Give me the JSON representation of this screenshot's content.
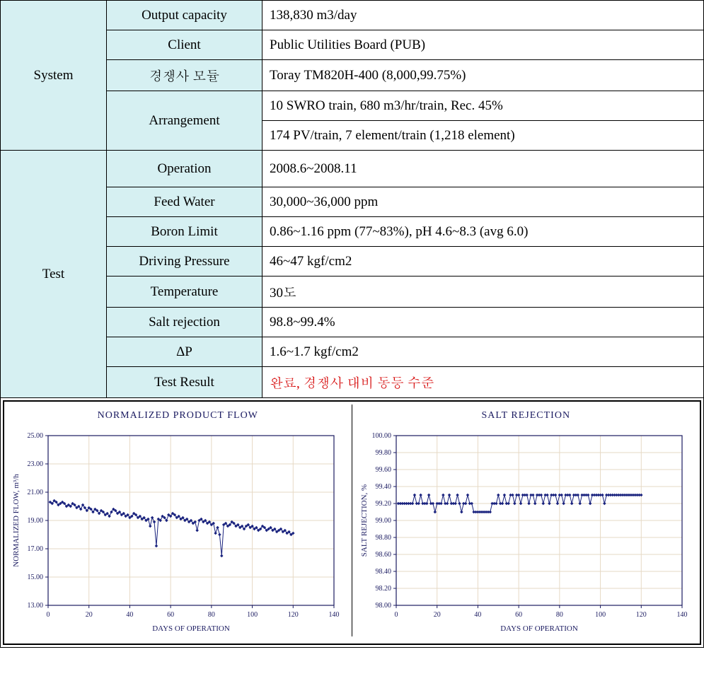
{
  "table": {
    "system": {
      "category": "System",
      "rows": [
        {
          "label": "Output capacity",
          "value": "138,830 m3/day"
        },
        {
          "label": "Client",
          "value": "Public Utilities Board (PUB)"
        },
        {
          "label": "경쟁사 모듈",
          "value": "Toray TM820H-400 (8,000,99.75%)"
        },
        {
          "label": "Arrangement",
          "value": "10 SWRO train, 680 m3/hr/train, Rec. 45%",
          "rowspan": 2
        },
        {
          "label": "",
          "value": "174 PV/train, 7 element/train (1,218 element)"
        }
      ]
    },
    "test": {
      "category": "Test",
      "rows": [
        {
          "label": "Operation",
          "value": "2008.6~2008.11"
        },
        {
          "label": "Feed Water",
          "value": "30,000~36,000 ppm"
        },
        {
          "label": "Boron Limit",
          "value": "0.86~1.16 ppm (77~83%), pH 4.6~8.3 (avg 6.0)"
        },
        {
          "label": "Driving Pressure",
          "value": "46~47 kgf/cm2"
        },
        {
          "label": "Temperature",
          "value": "30도"
        },
        {
          "label": "Salt rejection",
          "value": "98.8~99.4%"
        },
        {
          "label": "ΔP",
          "value": "1.6~1.7 kgf/cm2"
        },
        {
          "label": "Test Result",
          "value": "완료, 경쟁사 대비 동등 수준",
          "value_class": "red"
        }
      ]
    }
  },
  "charts": {
    "left": {
      "title": "NORMALIZED PRODUCT FLOW",
      "xlabel": "DAYS OF OPERATION",
      "ylabel": "NORMALIZED FLOW, m³/h",
      "xlim": [
        0,
        140
      ],
      "ylim": [
        13,
        25
      ],
      "xticks": [
        0,
        20,
        40,
        60,
        80,
        100,
        120,
        140
      ],
      "yticks": [
        13,
        15,
        17,
        19,
        21,
        23,
        25
      ],
      "ytick_labels": [
        "13.00",
        "15.00",
        "17.00",
        "19.00",
        "21.00",
        "23.00",
        "25.00"
      ],
      "series_color": "#1a237e",
      "grid_color": "#e6d9c5",
      "axis_color": "#1a1a60",
      "data": [
        [
          1,
          20.3
        ],
        [
          2,
          20.2
        ],
        [
          3,
          20.4
        ],
        [
          4,
          20.3
        ],
        [
          5,
          20.1
        ],
        [
          6,
          20.2
        ],
        [
          7,
          20.3
        ],
        [
          8,
          20.2
        ],
        [
          9,
          20.0
        ],
        [
          10,
          20.1
        ],
        [
          11,
          20.0
        ],
        [
          12,
          20.2
        ],
        [
          13,
          20.1
        ],
        [
          14,
          19.9
        ],
        [
          15,
          20.0
        ],
        [
          16,
          19.8
        ],
        [
          17,
          20.1
        ],
        [
          18,
          19.9
        ],
        [
          19,
          19.7
        ],
        [
          20,
          19.9
        ],
        [
          21,
          19.8
        ],
        [
          22,
          19.6
        ],
        [
          23,
          19.8
        ],
        [
          24,
          19.7
        ],
        [
          25,
          19.5
        ],
        [
          26,
          19.7
        ],
        [
          27,
          19.6
        ],
        [
          28,
          19.4
        ],
        [
          29,
          19.5
        ],
        [
          30,
          19.3
        ],
        [
          31,
          19.6
        ],
        [
          32,
          19.8
        ],
        [
          33,
          19.7
        ],
        [
          34,
          19.5
        ],
        [
          35,
          19.6
        ],
        [
          36,
          19.4
        ],
        [
          37,
          19.5
        ],
        [
          38,
          19.3
        ],
        [
          39,
          19.4
        ],
        [
          40,
          19.2
        ],
        [
          41,
          19.3
        ],
        [
          42,
          19.5
        ],
        [
          43,
          19.4
        ],
        [
          44,
          19.2
        ],
        [
          45,
          19.3
        ],
        [
          46,
          19.1
        ],
        [
          47,
          19.2
        ],
        [
          48,
          19.0
        ],
        [
          49,
          19.1
        ],
        [
          50,
          18.6
        ],
        [
          51,
          19.2
        ],
        [
          52,
          18.9
        ],
        [
          53,
          17.2
        ],
        [
          54,
          19.1
        ],
        [
          55,
          19.0
        ],
        [
          56,
          19.3
        ],
        [
          57,
          19.2
        ],
        [
          58,
          19.0
        ],
        [
          59,
          19.4
        ],
        [
          60,
          19.3
        ],
        [
          61,
          19.5
        ],
        [
          62,
          19.4
        ],
        [
          63,
          19.2
        ],
        [
          64,
          19.3
        ],
        [
          65,
          19.1
        ],
        [
          66,
          19.2
        ],
        [
          67,
          19.0
        ],
        [
          68,
          19.1
        ],
        [
          69,
          18.9
        ],
        [
          70,
          19.0
        ],
        [
          71,
          18.8
        ],
        [
          72,
          18.9
        ],
        [
          73,
          18.3
        ],
        [
          74,
          19.0
        ],
        [
          75,
          19.1
        ],
        [
          76,
          18.9
        ],
        [
          77,
          19.0
        ],
        [
          78,
          18.8
        ],
        [
          79,
          18.9
        ],
        [
          80,
          18.7
        ],
        [
          81,
          18.8
        ],
        [
          82,
          18.1
        ],
        [
          83,
          18.5
        ],
        [
          84,
          18.0
        ],
        [
          85,
          16.5
        ],
        [
          86,
          18.7
        ],
        [
          87,
          18.8
        ],
        [
          88,
          18.6
        ],
        [
          89,
          18.7
        ],
        [
          90,
          18.9
        ],
        [
          91,
          18.8
        ],
        [
          92,
          18.6
        ],
        [
          93,
          18.7
        ],
        [
          94,
          18.5
        ],
        [
          95,
          18.6
        ],
        [
          96,
          18.4
        ],
        [
          97,
          18.6
        ],
        [
          98,
          18.7
        ],
        [
          99,
          18.5
        ],
        [
          100,
          18.6
        ],
        [
          101,
          18.4
        ],
        [
          102,
          18.5
        ],
        [
          103,
          18.3
        ],
        [
          104,
          18.4
        ],
        [
          105,
          18.6
        ],
        [
          106,
          18.5
        ],
        [
          107,
          18.3
        ],
        [
          108,
          18.4
        ],
        [
          109,
          18.5
        ],
        [
          110,
          18.3
        ],
        [
          111,
          18.4
        ],
        [
          112,
          18.2
        ],
        [
          113,
          18.3
        ],
        [
          114,
          18.4
        ],
        [
          115,
          18.2
        ],
        [
          116,
          18.3
        ],
        [
          117,
          18.1
        ],
        [
          118,
          18.2
        ],
        [
          119,
          18.0
        ],
        [
          120,
          18.1
        ]
      ]
    },
    "right": {
      "title": "SALT REJECTION",
      "xlabel": "DAYS OF OPERATION",
      "ylabel": "SALT REJECTION, %",
      "xlim": [
        0,
        140
      ],
      "ylim": [
        98.0,
        100.0
      ],
      "xticks": [
        0,
        20,
        40,
        60,
        80,
        100,
        120,
        140
      ],
      "yticks": [
        98.0,
        98.2,
        98.4,
        98.6,
        98.8,
        99.0,
        99.2,
        99.4,
        99.6,
        99.8,
        100.0
      ],
      "ytick_labels": [
        "98.00",
        "98.20",
        "98.40",
        "98.60",
        "98.80",
        "99.00",
        "99.20",
        "99.40",
        "99.60",
        "99.80",
        "100.00"
      ],
      "series_color": "#1a237e",
      "grid_color": "#e6d9c5",
      "axis_color": "#1a1a60",
      "data": [
        [
          1,
          99.2
        ],
        [
          2,
          99.2
        ],
        [
          3,
          99.2
        ],
        [
          4,
          99.2
        ],
        [
          5,
          99.2
        ],
        [
          6,
          99.2
        ],
        [
          7,
          99.2
        ],
        [
          8,
          99.2
        ],
        [
          9,
          99.3
        ],
        [
          10,
          99.2
        ],
        [
          11,
          99.2
        ],
        [
          12,
          99.3
        ],
        [
          13,
          99.2
        ],
        [
          14,
          99.2
        ],
        [
          15,
          99.2
        ],
        [
          16,
          99.3
        ],
        [
          17,
          99.2
        ],
        [
          18,
          99.2
        ],
        [
          19,
          99.1
        ],
        [
          20,
          99.2
        ],
        [
          21,
          99.2
        ],
        [
          22,
          99.2
        ],
        [
          23,
          99.3
        ],
        [
          24,
          99.2
        ],
        [
          25,
          99.2
        ],
        [
          26,
          99.3
        ],
        [
          27,
          99.2
        ],
        [
          28,
          99.2
        ],
        [
          29,
          99.2
        ],
        [
          30,
          99.3
        ],
        [
          31,
          99.2
        ],
        [
          32,
          99.1
        ],
        [
          33,
          99.2
        ],
        [
          34,
          99.2
        ],
        [
          35,
          99.3
        ],
        [
          36,
          99.2
        ],
        [
          37,
          99.2
        ],
        [
          38,
          99.1
        ],
        [
          39,
          99.1
        ],
        [
          40,
          99.1
        ],
        [
          41,
          99.1
        ],
        [
          42,
          99.1
        ],
        [
          43,
          99.1
        ],
        [
          44,
          99.1
        ],
        [
          45,
          99.1
        ],
        [
          46,
          99.1
        ],
        [
          47,
          99.2
        ],
        [
          48,
          99.2
        ],
        [
          49,
          99.2
        ],
        [
          50,
          99.3
        ],
        [
          51,
          99.2
        ],
        [
          52,
          99.2
        ],
        [
          53,
          99.3
        ],
        [
          54,
          99.2
        ],
        [
          55,
          99.2
        ],
        [
          56,
          99.3
        ],
        [
          57,
          99.3
        ],
        [
          58,
          99.2
        ],
        [
          59,
          99.3
        ],
        [
          60,
          99.3
        ],
        [
          61,
          99.2
        ],
        [
          62,
          99.3
        ],
        [
          63,
          99.3
        ],
        [
          64,
          99.3
        ],
        [
          65,
          99.2
        ],
        [
          66,
          99.3
        ],
        [
          67,
          99.3
        ],
        [
          68,
          99.2
        ],
        [
          69,
          99.3
        ],
        [
          70,
          99.3
        ],
        [
          71,
          99.3
        ],
        [
          72,
          99.2
        ],
        [
          73,
          99.3
        ],
        [
          74,
          99.3
        ],
        [
          75,
          99.2
        ],
        [
          76,
          99.3
        ],
        [
          77,
          99.3
        ],
        [
          78,
          99.3
        ],
        [
          79,
          99.2
        ],
        [
          80,
          99.3
        ],
        [
          81,
          99.3
        ],
        [
          82,
          99.2
        ],
        [
          83,
          99.3
        ],
        [
          84,
          99.3
        ],
        [
          85,
          99.3
        ],
        [
          86,
          99.2
        ],
        [
          87,
          99.3
        ],
        [
          88,
          99.3
        ],
        [
          89,
          99.3
        ],
        [
          90,
          99.2
        ],
        [
          91,
          99.3
        ],
        [
          92,
          99.3
        ],
        [
          93,
          99.3
        ],
        [
          94,
          99.3
        ],
        [
          95,
          99.2
        ],
        [
          96,
          99.3
        ],
        [
          97,
          99.3
        ],
        [
          98,
          99.3
        ],
        [
          99,
          99.3
        ],
        [
          100,
          99.3
        ],
        [
          101,
          99.3
        ],
        [
          102,
          99.2
        ],
        [
          103,
          99.3
        ],
        [
          104,
          99.3
        ],
        [
          105,
          99.3
        ],
        [
          106,
          99.3
        ],
        [
          107,
          99.3
        ],
        [
          108,
          99.3
        ],
        [
          109,
          99.3
        ],
        [
          110,
          99.3
        ],
        [
          111,
          99.3
        ],
        [
          112,
          99.3
        ],
        [
          113,
          99.3
        ],
        [
          114,
          99.3
        ],
        [
          115,
          99.3
        ],
        [
          116,
          99.3
        ],
        [
          117,
          99.3
        ],
        [
          118,
          99.3
        ],
        [
          119,
          99.3
        ],
        [
          120,
          99.3
        ]
      ]
    }
  }
}
